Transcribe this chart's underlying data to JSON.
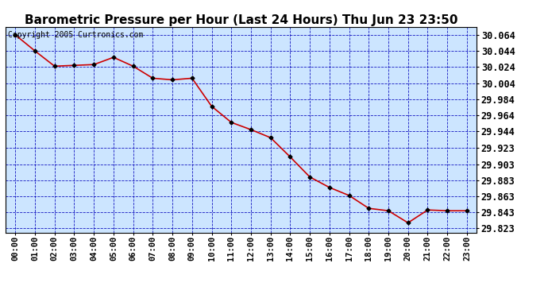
{
  "title": "Barometric Pressure per Hour (Last 24 Hours) Thu Jun 23 23:50",
  "copyright": "Copyright 2005 Curtronics.com",
  "x_labels": [
    "00:00",
    "01:00",
    "02:00",
    "03:00",
    "04:00",
    "05:00",
    "06:00",
    "07:00",
    "08:00",
    "09:00",
    "10:00",
    "11:00",
    "12:00",
    "13:00",
    "14:00",
    "15:00",
    "16:00",
    "17:00",
    "18:00",
    "19:00",
    "20:00",
    "21:00",
    "22:00",
    "23:00"
  ],
  "y_values": [
    30.064,
    30.044,
    30.025,
    30.026,
    30.027,
    30.036,
    30.025,
    30.01,
    30.008,
    30.01,
    29.975,
    29.955,
    29.946,
    29.936,
    29.912,
    29.887,
    29.874,
    29.864,
    29.848,
    29.845,
    29.83,
    29.846,
    29.845,
    29.845
  ],
  "ylim_min": 29.818,
  "ylim_max": 30.074,
  "yticks": [
    30.064,
    30.044,
    30.024,
    30.004,
    29.984,
    29.964,
    29.944,
    29.923,
    29.903,
    29.883,
    29.863,
    29.843,
    29.823
  ],
  "line_color": "#cc0000",
  "marker_color": "#000000",
  "bg_color": "#cce5ff",
  "grid_color": "#0000bb",
  "outer_bg": "#ffffff",
  "border_color": "#000000",
  "title_fontsize": 11,
  "copyright_fontsize": 7,
  "tick_fontsize": 7.5,
  "ytick_fontsize": 8.5
}
